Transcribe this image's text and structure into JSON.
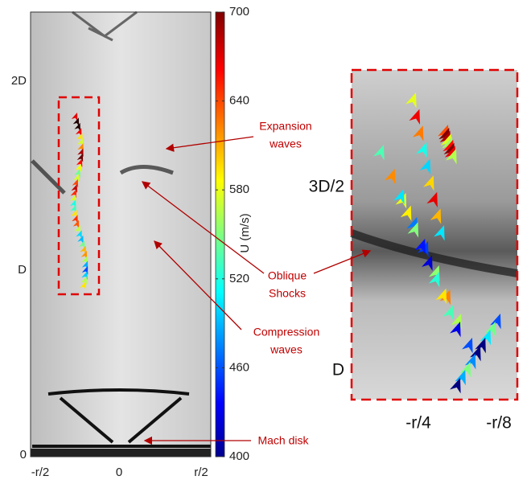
{
  "left_panel": {
    "x_tick_labels": [
      "-r/2",
      "0",
      "r/2"
    ],
    "y_tick_labels": [
      "0",
      "D",
      "2D"
    ]
  },
  "colorbar": {
    "label": "U (m/s)",
    "lim": [
      400,
      700
    ],
    "ticks": [
      400,
      460,
      520,
      580,
      640,
      700
    ]
  },
  "zoom_panel": {
    "x_tick_labels": [
      "-r/4",
      "-r/8"
    ],
    "y_tick_labels": [
      "D",
      "3D/2"
    ]
  },
  "annotations": [
    [
      "Expansion",
      "waves"
    ],
    [
      "Oblique",
      "Shocks"
    ],
    [
      "Compression",
      "waves"
    ],
    [
      "Mach disk"
    ]
  ]
}
